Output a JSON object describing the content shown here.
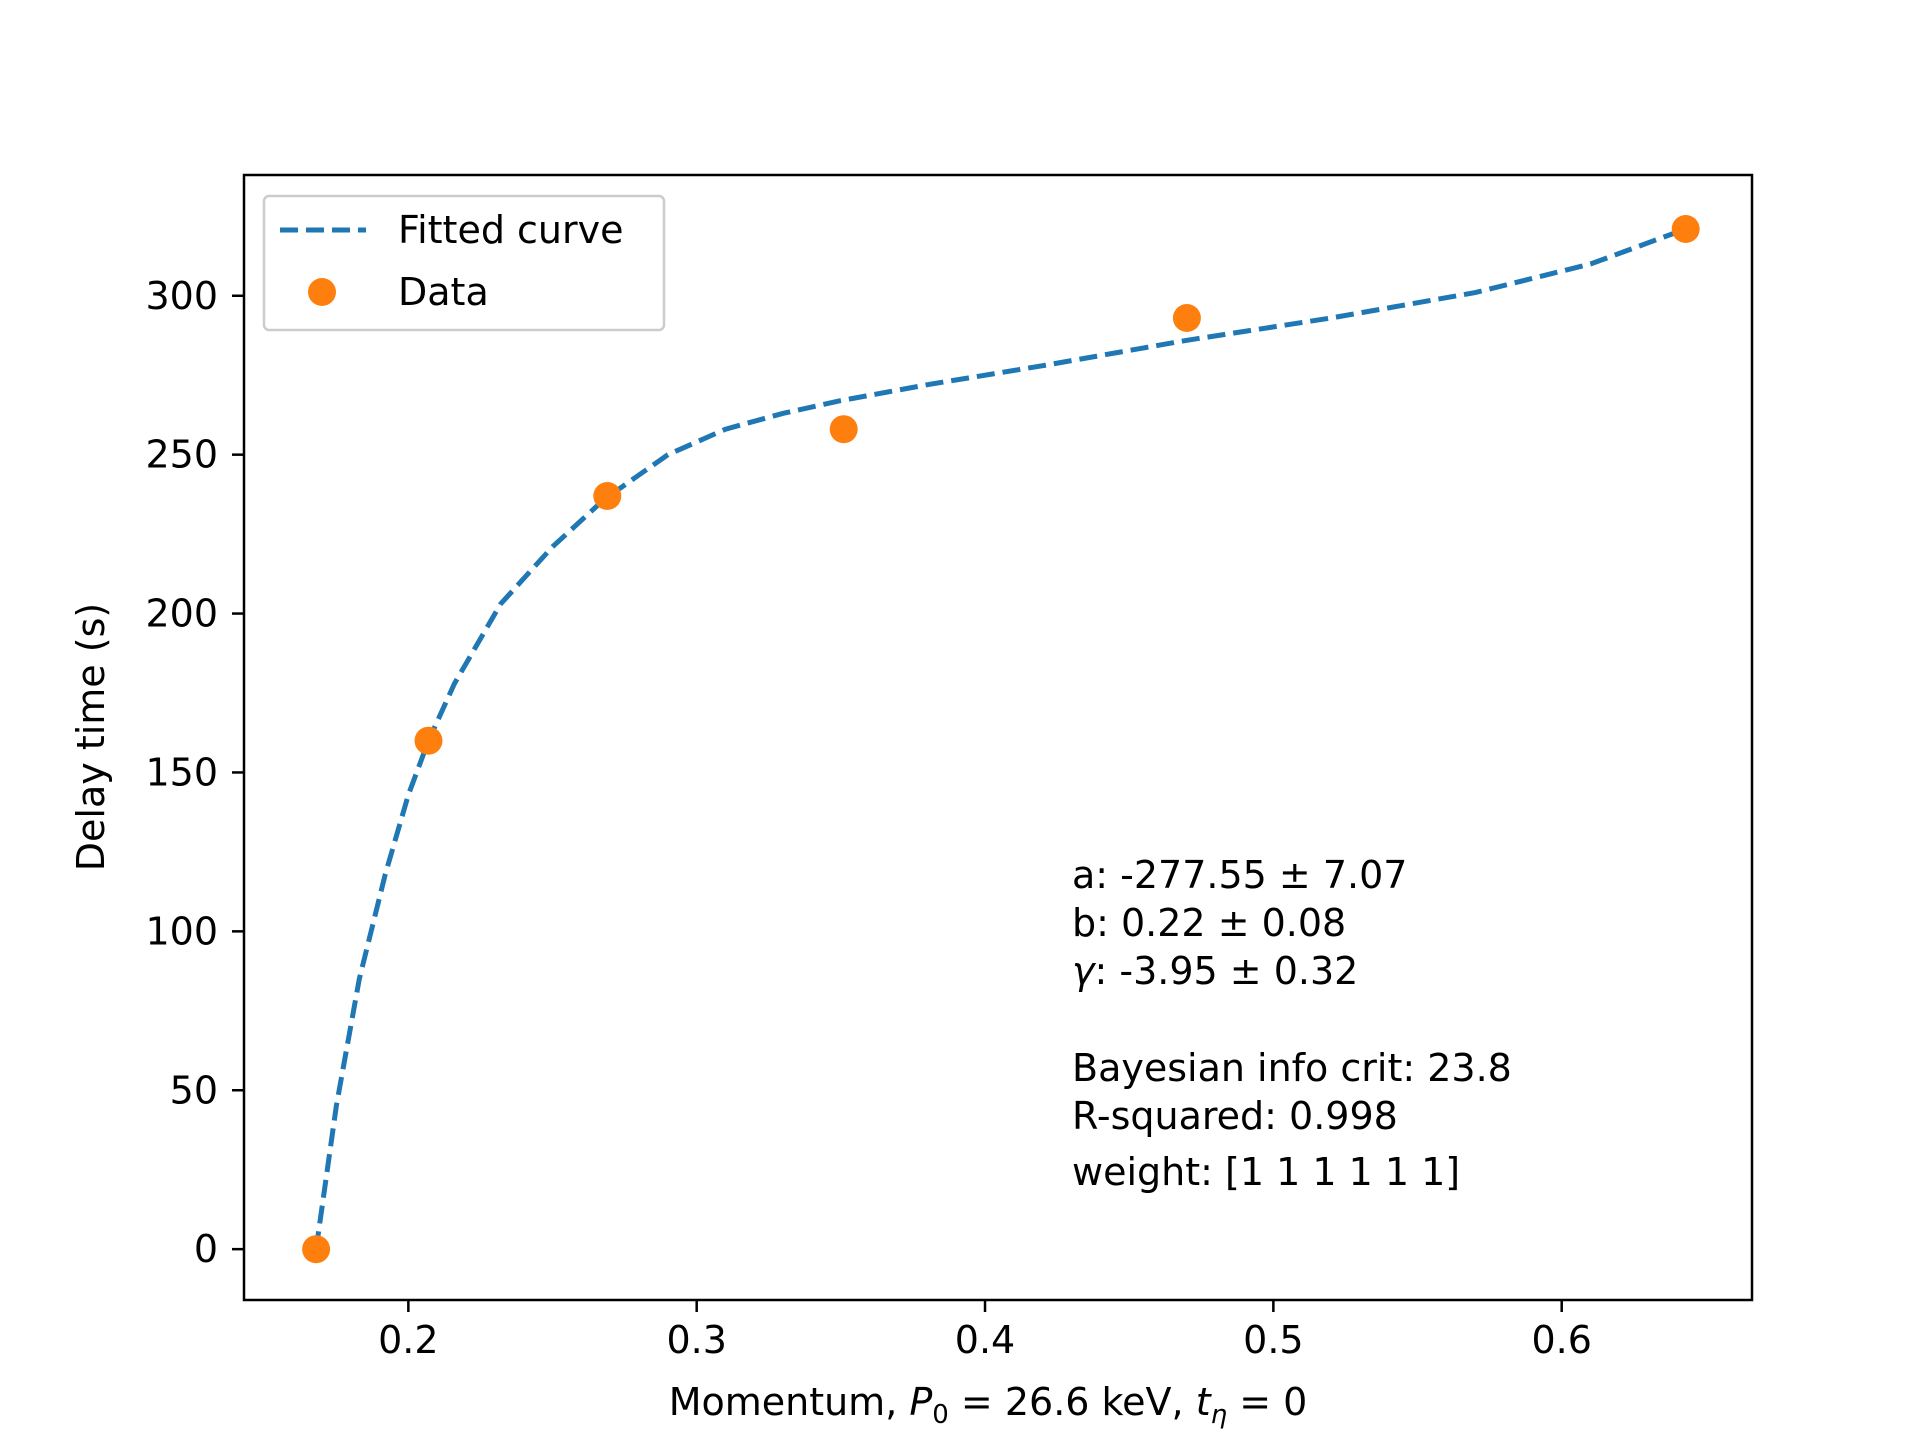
{
  "chart_data": {
    "type": "scatter",
    "title": "",
    "xlabel": "Momentum, P₀ = 26.6 keV, tη = 0",
    "xlabel_parts": {
      "prefix": "Momentum, ",
      "p_sym": "P",
      "p_sub": "0",
      "p_eq": " = 26.6 keV, ",
      "t_sym": "t",
      "t_sub": "η",
      "t_eq": " = 0"
    },
    "ylabel": "Delay time (s)",
    "xlim": [
      0.143,
      0.666
    ],
    "ylim": [
      -16,
      338
    ],
    "xticks": [
      0.2,
      0.3,
      0.4,
      0.5,
      0.6
    ],
    "xtick_labels": [
      "0.2",
      "0.3",
      "0.4",
      "0.5",
      "0.6"
    ],
    "yticks": [
      0,
      50,
      100,
      150,
      200,
      250,
      300
    ],
    "ytick_labels": [
      "0",
      "50",
      "100",
      "150",
      "200",
      "250",
      "300"
    ],
    "grid": false,
    "legend_position": "upper-left",
    "series": [
      {
        "name": "Fitted curve",
        "style": "dashed-line",
        "color": "#1f77b4",
        "x": [
          0.168,
          0.175,
          0.183,
          0.192,
          0.2,
          0.207,
          0.216,
          0.232,
          0.25,
          0.268,
          0.29,
          0.31,
          0.33,
          0.35,
          0.38,
          0.42,
          0.47,
          0.52,
          0.57,
          0.61,
          0.643
        ],
        "y": [
          0,
          45,
          85,
          118,
          143,
          160,
          178,
          203,
          221,
          236,
          250,
          258,
          263,
          267,
          272,
          278,
          286,
          293,
          301,
          310,
          321
        ]
      },
      {
        "name": "Data",
        "style": "markers",
        "color": "#ff7f0e",
        "x": [
          0.168,
          0.207,
          0.269,
          0.351,
          0.47,
          0.643
        ],
        "y": [
          0,
          160,
          237,
          258,
          293,
          321
        ]
      }
    ],
    "annotations": [
      "a: -277.55 ± 7.07",
      "b: 0.22 ± 0.08",
      "γ: -3.95 ± 0.32",
      "Bayesian info crit: 23.8",
      "R-squared: 0.998",
      "weight: [1 1 1 1 1 1]"
    ]
  }
}
